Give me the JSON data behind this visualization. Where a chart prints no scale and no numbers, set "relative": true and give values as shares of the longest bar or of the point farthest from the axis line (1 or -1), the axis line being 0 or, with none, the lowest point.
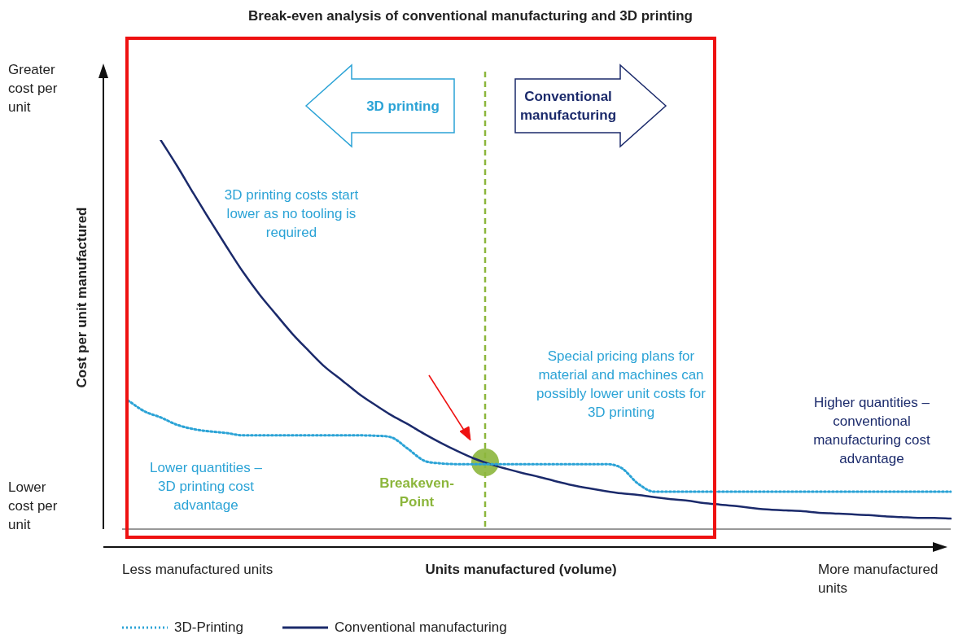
{
  "chart_data": {
    "type": "line",
    "title": "Break-even analysis of conventional manufacturing and 3D printing",
    "xlabel": "Units manufactured (volume)",
    "ylabel": "Cost per unit manufactured",
    "relative": true,
    "legend": "bottom left",
    "categories": [
      null,
      null,
      null,
      null,
      null,
      null,
      null,
      null,
      null,
      null,
      null,
      null,
      null,
      null,
      null,
      null,
      null,
      null,
      null,
      null,
      null,
      null,
      null,
      null,
      null,
      null,
      null,
      null,
      null,
      null,
      null,
      null,
      null,
      null,
      null,
      null,
      null,
      null,
      null,
      null,
      null,
      null,
      null,
      null,
      null,
      null,
      null,
      null,
      null,
      null,
      null
    ],
    "series": [
      {
        "name": "3D-Printing",
        "color": "#2ba3d6",
        "line_style": "dotted",
        "values": [
          0.331,
          0.303,
          0.287,
          0.268,
          0.257,
          0.251,
          0.247,
          0.241,
          0.241,
          0.241,
          0.241,
          0.241,
          0.241,
          0.241,
          0.241,
          0.24,
          0.236,
          0.207,
          0.176,
          0.169,
          0.167,
          0.167,
          0.167,
          0.167,
          0.167,
          0.167,
          0.167,
          0.167,
          0.167,
          0.167,
          0.157,
          0.117,
          0.096,
          0.096,
          0.096,
          0.096,
          0.096,
          0.096,
          0.096,
          0.096,
          0.096,
          0.096,
          0.096,
          0.096,
          0.096,
          0.096,
          0.096,
          0.096,
          0.096,
          0.096,
          0.096
        ]
      },
      {
        "name": "Conventional manufacturing",
        "color": "#1b2a6b",
        "line_style": "solid",
        "values": [
          null,
          null,
          1.0,
          0.933,
          0.862,
          0.793,
          0.726,
          0.661,
          0.603,
          0.552,
          0.502,
          0.458,
          0.416,
          0.383,
          0.349,
          0.32,
          0.293,
          0.27,
          0.245,
          0.222,
          0.201,
          0.182,
          0.167,
          0.155,
          0.144,
          0.134,
          0.123,
          0.113,
          0.105,
          0.098,
          0.092,
          0.088,
          0.082,
          0.077,
          0.073,
          0.067,
          0.063,
          0.059,
          0.054,
          0.05,
          0.048,
          0.046,
          0.042,
          0.04,
          0.038,
          0.036,
          0.033,
          0.031,
          0.029,
          0.029,
          0.027
        ]
      }
    ],
    "annotations": [
      "Greater cost per unit",
      "Lower cost per unit",
      "Less manufactured units",
      "More manufactured units",
      "3D printing",
      "Conventional manufacturing",
      "3D printing costs start lower as no tooling is required",
      "Lower quantities – 3D printing cost advantage",
      "Special pricing plans for material and machines can possibly lower unit costs for 3D printing",
      "Higher quantities – conventional manufacturing cost advantage",
      "Breakeven-Point"
    ]
  }
}
